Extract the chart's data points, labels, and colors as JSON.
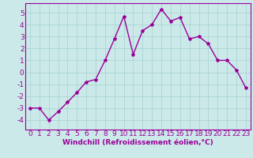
{
  "x": [
    0,
    1,
    2,
    3,
    4,
    5,
    6,
    7,
    8,
    9,
    10,
    11,
    12,
    13,
    14,
    15,
    16,
    17,
    18,
    19,
    20,
    21,
    22,
    23
  ],
  "y": [
    -3,
    -3,
    -4,
    -3.3,
    -2.5,
    -1.7,
    -0.8,
    -0.6,
    1.0,
    2.8,
    4.7,
    1.5,
    3.5,
    4.0,
    5.3,
    4.3,
    4.6,
    2.8,
    3.0,
    2.4,
    1.0,
    1.0,
    0.2,
    -1.3
  ],
  "line_color": "#990099",
  "marker": "*",
  "marker_size": 3,
  "bg_color": "#cce9e9",
  "grid_color": "#aad4d4",
  "xlabel": "Windchill (Refroidissement éolien,°C)",
  "ylabel_ticks": [
    -4,
    -3,
    -2,
    -1,
    0,
    1,
    2,
    3,
    4,
    5
  ],
  "xlim": [
    -0.5,
    23.5
  ],
  "ylim": [
    -4.8,
    5.8
  ],
  "xlabel_fontsize": 6.5,
  "tick_fontsize": 6.5,
  "line_width": 1.0
}
